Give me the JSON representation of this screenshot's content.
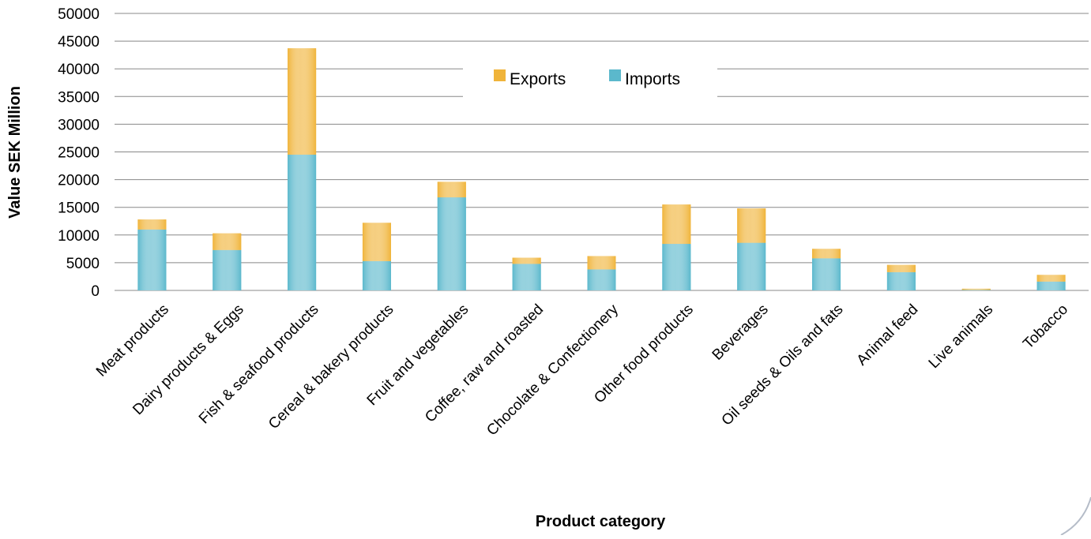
{
  "colors": {
    "imports": "#5BB8CC",
    "exports": "#F0B43A",
    "gridline": "#888888",
    "corner_curve": "#b5bcc8"
  },
  "chart_data": {
    "type": "bar",
    "stacked": true,
    "xlabel": "Product category",
    "ylabel": "Value SEK Million",
    "ylim": [
      0,
      50000
    ],
    "yticks": [
      0,
      5000,
      10000,
      15000,
      20000,
      25000,
      30000,
      35000,
      40000,
      45000,
      50000
    ],
    "grid": true,
    "legend_position": "top-center",
    "categories": [
      "Meat products",
      "Dairy products & Eggs",
      "Fish & seafood products",
      "Cereal & bakery products",
      "Fruit and vegetables",
      "Coffee, raw and roasted",
      "Chocolate & Confectionery",
      "Other food products",
      "Beverages",
      "Oil seeds & Oils and fats",
      "Animal feed",
      "Live animals",
      "Tobacco"
    ],
    "series": [
      {
        "name": "Imports",
        "values": [
          11000,
          7300,
          24500,
          5300,
          16800,
          4800,
          3800,
          8400,
          8600,
          5800,
          3300,
          100,
          1600
        ]
      },
      {
        "name": "Exports",
        "values": [
          1800,
          3000,
          19200,
          6900,
          2800,
          1100,
          2400,
          7100,
          6200,
          1700,
          1300,
          200,
          1200
        ]
      }
    ],
    "legend": [
      {
        "name": "Exports",
        "color": "#F0B43A"
      },
      {
        "name": "Imports",
        "color": "#5BB8CC"
      }
    ]
  }
}
